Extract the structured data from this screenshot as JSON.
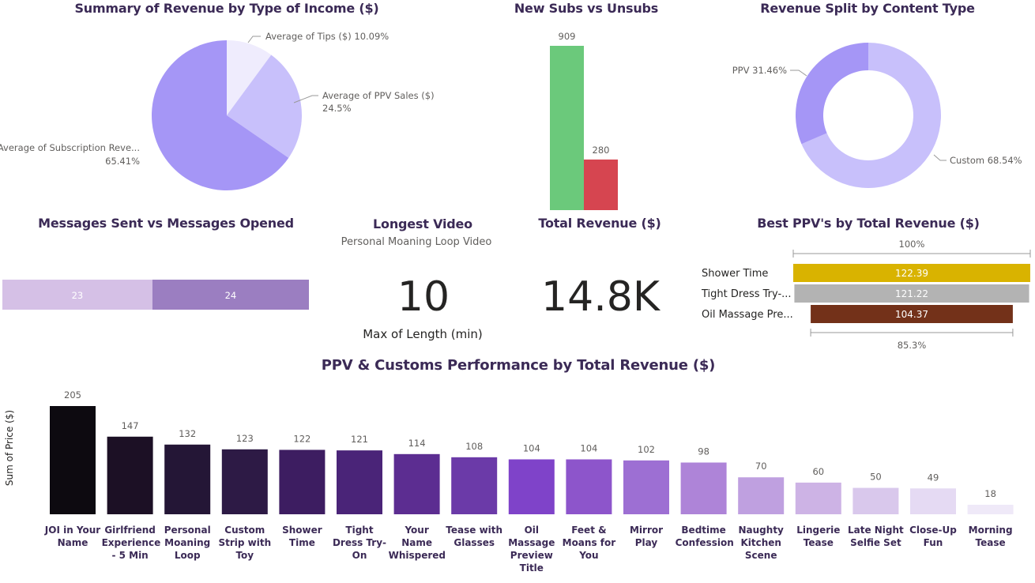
{
  "titles": {
    "revenue_income": "Summary of Revenue by Type of Income ($)",
    "subs": "New Subs vs Unsubs",
    "content_split": "Revenue Split by Content Type",
    "messages": "Messages Sent vs Messages Opened",
    "longest": "Longest Video",
    "total_revenue": "Total Revenue ($)",
    "best_ppv": "Best PPV's by Total Revenue ($)",
    "ppv_perf": "PPV & Customs Performance by Total Revenue ($)"
  },
  "longest_video": {
    "name": "Personal Moaning Loop Video",
    "value": "10",
    "caption": "Max of Length (min)"
  },
  "total_revenue": {
    "value": "14.8K"
  },
  "chart_data": [
    {
      "type": "pie",
      "id": "income",
      "slices": [
        {
          "label": "Average of Tips ($)",
          "pct_label": "10.09%",
          "value": 10.09,
          "color": "#efecfd"
        },
        {
          "label": "Average of PPV Sales ($)",
          "pct_label": "24.5%",
          "value": 24.5,
          "color": "#c8c0fb"
        },
        {
          "label": "Average of Subscription Reve...",
          "pct_label": "65.41%",
          "value": 65.41,
          "color": "#a596f6"
        }
      ]
    },
    {
      "type": "bar",
      "id": "subs",
      "categories": [
        "New Subs",
        "Unsubs"
      ],
      "values": [
        909,
        280
      ],
      "value_labels": [
        "909",
        "280"
      ],
      "colors": [
        "#6bc97b",
        "#d64550"
      ]
    },
    {
      "type": "pie",
      "id": "content",
      "donut": true,
      "slices": [
        {
          "label": "Custom",
          "pct_label": "68.54%",
          "value": 68.54,
          "color": "#c8c0fb"
        },
        {
          "label": "PPV",
          "pct_label": "31.46%",
          "value": 31.46,
          "color": "#a596f6"
        }
      ]
    },
    {
      "type": "bar",
      "id": "messages",
      "orientation": "horizontal-stacked",
      "series": [
        {
          "name": "Messages Sent",
          "value": 23,
          "label": "23",
          "color": "#d5c0e6"
        },
        {
          "name": "Messages Opened",
          "value": 24,
          "label": "24",
          "color": "#9b7ec1"
        }
      ]
    },
    {
      "type": "bar",
      "id": "best_ppv",
      "orientation": "horizontal-funnel",
      "top_label": "100%",
      "bottom_label": "85.3%",
      "categories": [
        "Shower Time",
        "Tight Dress Try-...",
        "Oil Massage Pre..."
      ],
      "values": [
        122.39,
        121.22,
        104.37
      ],
      "value_labels": [
        "122.39",
        "121.22",
        "104.37"
      ],
      "colors": [
        "#d9b300",
        "#b3b3b3",
        "#733119"
      ]
    },
    {
      "type": "bar",
      "id": "ppv_perf",
      "ylabel": "Sum of Price ($)",
      "categories": [
        "JOI in Your Name",
        "Girlfriend Experience - 5 Min",
        "Personal Moaning Loop",
        "Custom Strip with Toy",
        "Shower Time",
        "Tight Dress Try-On",
        "Your Name Whispered",
        "Tease with Glasses",
        "Oil Massage Preview Title",
        "Feet & Moans for You",
        "Mirror Play",
        "Bedtime Confession",
        "Naughty Kitchen Scene",
        "Lingerie Tease",
        "Late Night Selfie Set",
        "Close-Up Fun",
        "Morning Tease"
      ],
      "values": [
        205,
        147,
        132,
        123,
        122,
        121,
        114,
        108,
        104,
        104,
        102,
        98,
        70,
        60,
        50,
        49,
        18
      ],
      "value_labels": [
        "205",
        "147",
        "132",
        "123",
        "122",
        "121",
        "114",
        "108",
        "104",
        "104",
        "102",
        "98",
        "70",
        "60",
        "50",
        "49",
        "18"
      ],
      "colors": [
        "#0d0a10",
        "#1c1025",
        "#241636",
        "#2d1a45",
        "#3d1d61",
        "#4a2478",
        "#5c2d91",
        "#6b3aa8",
        "#7f43c9",
        "#8d55cb",
        "#9d6fd3",
        "#ae84d8",
        "#bfa0e0",
        "#cdb3e5",
        "#d9c8ec",
        "#e5daf3",
        "#efe9f8"
      ]
    }
  ]
}
